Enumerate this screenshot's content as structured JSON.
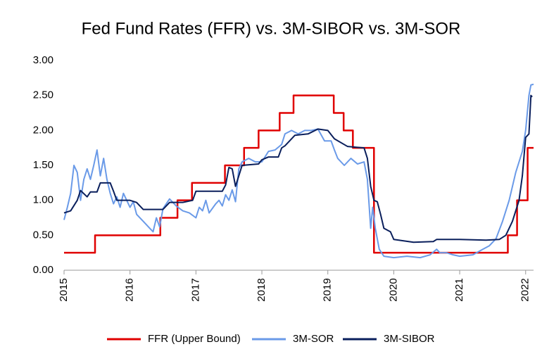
{
  "chart_data": {
    "type": "line",
    "title": "Fed Fund Rates (FFR) vs. 3M-SIBOR vs. 3M-SOR",
    "xlim": [
      2015,
      2022.12
    ],
    "xticks": [
      2015,
      2016,
      2017,
      2018,
      2019,
      2020,
      2021,
      2022
    ],
    "ylim": [
      0,
      3
    ],
    "yticks": [
      {
        "value": 0,
        "label": "0.00"
      },
      {
        "value": 0.5,
        "label": "0.50"
      },
      {
        "value": 1,
        "label": "1.00"
      },
      {
        "value": 1.5,
        "label": "1.50"
      },
      {
        "value": 2,
        "label": "2.00"
      },
      {
        "value": 2.5,
        "label": "2.50"
      },
      {
        "value": 3,
        "label": "3.00"
      }
    ],
    "grid": false,
    "legend": "bottom",
    "series": [
      {
        "name": "FFR (Upper Bound)",
        "color": "#e00000",
        "x": [
          2015,
          2015.47,
          2015.47,
          2016.46,
          2016.46,
          2016.72,
          2016.72,
          2016.94,
          2016.94,
          2017.44,
          2017.44,
          2017.73,
          2017.73,
          2017.95,
          2017.95,
          2018.27,
          2018.27,
          2018.48,
          2018.48,
          2019.09,
          2019.09,
          2019.24,
          2019.24,
          2019.38,
          2019.38,
          2019.7,
          2019.7,
          2021.73,
          2021.73,
          2021.87,
          2021.87,
          2022.03,
          2022.03,
          2022.12
        ],
        "values": [
          0.25,
          0.25,
          0.5,
          0.5,
          0.75,
          0.75,
          1,
          1,
          1.25,
          1.25,
          1.5,
          1.5,
          1.75,
          1.75,
          2,
          2,
          2.25,
          2.25,
          2.5,
          2.5,
          2.25,
          2.25,
          2,
          2,
          1.75,
          1.75,
          0.25,
          0.25,
          0.5,
          0.5,
          1,
          1,
          1.75,
          1.75
        ]
      },
      {
        "name": "3M-SOR",
        "color": "#6a9ae8",
        "x": [
          2015,
          2015.05,
          2015.1,
          2015.15,
          2015.2,
          2015.25,
          2015.3,
          2015.35,
          2015.4,
          2015.45,
          2015.5,
          2015.55,
          2015.6,
          2015.65,
          2015.7,
          2015.75,
          2015.8,
          2015.85,
          2015.9,
          2016,
          2016.05,
          2016.1,
          2016.2,
          2016.3,
          2016.35,
          2016.4,
          2016.45,
          2016.5,
          2016.6,
          2016.7,
          2016.8,
          2016.9,
          2017,
          2017.05,
          2017.1,
          2017.15,
          2017.2,
          2017.3,
          2017.35,
          2017.4,
          2017.45,
          2017.5,
          2017.55,
          2017.6,
          2017.65,
          2017.7,
          2017.8,
          2017.9,
          2018,
          2018.1,
          2018.2,
          2018.3,
          2018.35,
          2018.45,
          2018.55,
          2018.65,
          2018.75,
          2018.85,
          2018.95,
          2019.05,
          2019.1,
          2019.15,
          2019.25,
          2019.35,
          2019.45,
          2019.55,
          2019.6,
          2019.65,
          2019.68,
          2019.72,
          2019.78,
          2019.85,
          2020,
          2020.2,
          2020.4,
          2020.55,
          2020.65,
          2020.7,
          2020.8,
          2020.9,
          2021,
          2021.2,
          2021.35,
          2021.45,
          2021.55,
          2021.65,
          2021.75,
          2021.85,
          2021.95,
          2022,
          2022.05,
          2022.08,
          2022.12
        ],
        "values": [
          0.72,
          0.9,
          1.1,
          1.5,
          1.4,
          1.0,
          1.3,
          1.45,
          1.3,
          1.5,
          1.72,
          1.35,
          1.6,
          1.3,
          1.1,
          0.95,
          1.05,
          0.9,
          1.1,
          0.9,
          0.98,
          0.8,
          0.7,
          0.6,
          0.55,
          0.75,
          0.62,
          0.88,
          1.02,
          0.92,
          0.85,
          0.82,
          0.75,
          0.9,
          0.85,
          1.0,
          0.82,
          0.95,
          1.0,
          0.92,
          1.08,
          1.0,
          1.15,
          0.98,
          1.45,
          1.55,
          1.6,
          1.55,
          1.55,
          1.7,
          1.72,
          1.8,
          1.95,
          2.0,
          1.95,
          2.0,
          2.0,
          2.02,
          1.85,
          1.85,
          1.72,
          1.6,
          1.5,
          1.6,
          1.52,
          1.55,
          1.3,
          0.6,
          0.9,
          0.6,
          0.3,
          0.2,
          0.18,
          0.2,
          0.18,
          0.22,
          0.3,
          0.25,
          0.25,
          0.22,
          0.2,
          0.22,
          0.3,
          0.35,
          0.45,
          0.7,
          1.0,
          1.4,
          1.7,
          2.0,
          2.5,
          2.65,
          2.66
        ]
      },
      {
        "name": "3M-SIBOR",
        "color": "#0a1f5c",
        "x": [
          2015,
          2015.1,
          2015.2,
          2015.25,
          2015.35,
          2015.4,
          2015.5,
          2015.55,
          2015.7,
          2015.75,
          2015.8,
          2016,
          2016.1,
          2016.2,
          2016.5,
          2016.6,
          2016.8,
          2016.95,
          2017,
          2017.4,
          2017.45,
          2017.5,
          2017.55,
          2017.6,
          2017.65,
          2017.7,
          2017.95,
          2018,
          2018.1,
          2018.25,
          2018.3,
          2018.35,
          2018.5,
          2018.7,
          2018.85,
          2019,
          2019.1,
          2019.3,
          2019.55,
          2019.6,
          2019.65,
          2019.7,
          2019.75,
          2019.8,
          2019.85,
          2019.95,
          2020,
          2020.3,
          2020.6,
          2020.65,
          2021,
          2021.4,
          2021.6,
          2021.7,
          2021.8,
          2021.9,
          2021.95,
          2022,
          2022.05,
          2022.08,
          2022.1
        ],
        "values": [
          0.82,
          0.85,
          1.0,
          1.14,
          1.05,
          1.12,
          1.12,
          1.25,
          1.25,
          1.13,
          1.0,
          1.0,
          0.97,
          0.87,
          0.87,
          0.97,
          0.97,
          1.0,
          1.13,
          1.13,
          1.22,
          1.47,
          1.45,
          1.2,
          1.35,
          1.5,
          1.52,
          1.58,
          1.62,
          1.62,
          1.75,
          1.78,
          1.93,
          1.95,
          2.02,
          2.0,
          1.88,
          1.77,
          1.75,
          1.6,
          1.2,
          1.0,
          0.98,
          0.8,
          0.6,
          0.55,
          0.44,
          0.4,
          0.41,
          0.44,
          0.44,
          0.43,
          0.44,
          0.5,
          0.7,
          1.0,
          1.35,
          1.9,
          1.95,
          2.5,
          2.48
        ]
      }
    ]
  }
}
